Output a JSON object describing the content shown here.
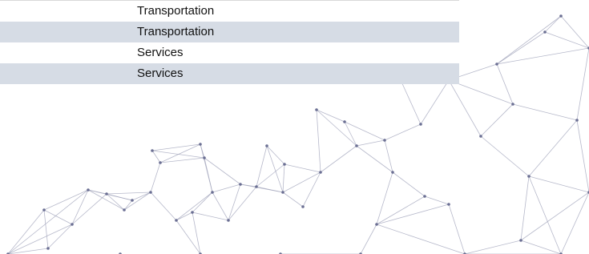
{
  "table": {
    "rows": [
      [
        "Transportation"
      ],
      [
        "Transportation"
      ],
      [
        "Services"
      ],
      [
        "Services"
      ]
    ]
  }
}
